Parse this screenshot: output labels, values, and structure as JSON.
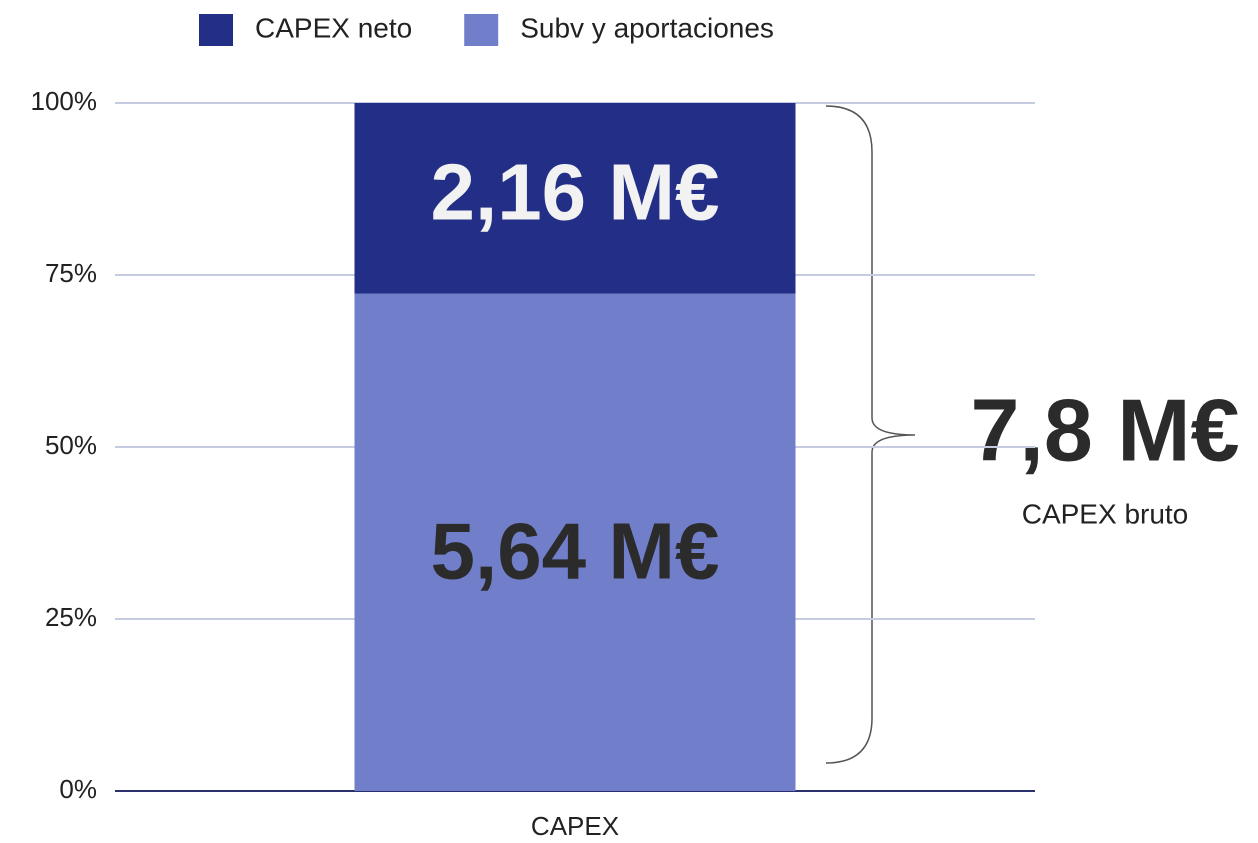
{
  "chart_data": {
    "type": "bar",
    "stacking": "percent",
    "categories": [
      "CAPEX"
    ],
    "series": [
      {
        "name": "Subv y aportaciones",
        "color": "#717fca",
        "values": [
          5.64
        ],
        "value_labels": [
          "5,64 M€"
        ],
        "label_color": "#2b2b2b"
      },
      {
        "name": "CAPEX neto",
        "color": "#232f86",
        "values": [
          2.16
        ],
        "value_labels": [
          "2,16 M€"
        ],
        "label_color": "#f2f2f2"
      }
    ],
    "legend_order": [
      1,
      0
    ],
    "ylim": [
      0,
      100
    ],
    "yticks": [
      {
        "value": 0,
        "label": "0%"
      },
      {
        "value": 25,
        "label": "25%"
      },
      {
        "value": 50,
        "label": "50%"
      },
      {
        "value": 75,
        "label": "75%"
      },
      {
        "value": 100,
        "label": "100%"
      }
    ],
    "grid": true,
    "annotations": {
      "total": "7,8 M€",
      "caption": "CAPEX bruto"
    }
  }
}
